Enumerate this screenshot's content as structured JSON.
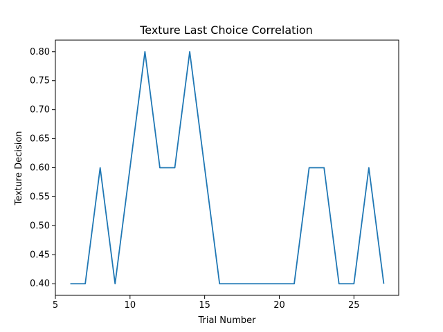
{
  "chart_data": {
    "type": "line",
    "title": "Texture Last Choice Correlation",
    "xlabel": "Trial Number",
    "ylabel": "Texture Decision",
    "xlim": [
      5,
      28
    ],
    "ylim": [
      0.38,
      0.82
    ],
    "xticks": [
      5,
      10,
      15,
      20,
      25
    ],
    "yticks": [
      0.4,
      0.45,
      0.5,
      0.55,
      0.6,
      0.65,
      0.7,
      0.75,
      0.8
    ],
    "ytick_labels": [
      "0.40",
      "0.45",
      "0.50",
      "0.55",
      "0.60",
      "0.65",
      "0.70",
      "0.75",
      "0.80"
    ],
    "grid": false,
    "line_color": "#1f77b4",
    "series": [
      {
        "x": [
          6,
          7,
          8,
          9,
          10,
          11,
          12,
          13,
          14,
          15,
          16,
          17,
          18,
          19,
          20,
          21,
          22,
          23,
          24,
          25,
          26,
          27
        ],
        "values": [
          0.4,
          0.4,
          0.6,
          0.4,
          0.6,
          0.8,
          0.6,
          0.6,
          0.8,
          0.6,
          0.4,
          0.4,
          0.4,
          0.4,
          0.4,
          0.4,
          0.6,
          0.6,
          0.4,
          0.4,
          0.6,
          0.4
        ]
      }
    ]
  }
}
